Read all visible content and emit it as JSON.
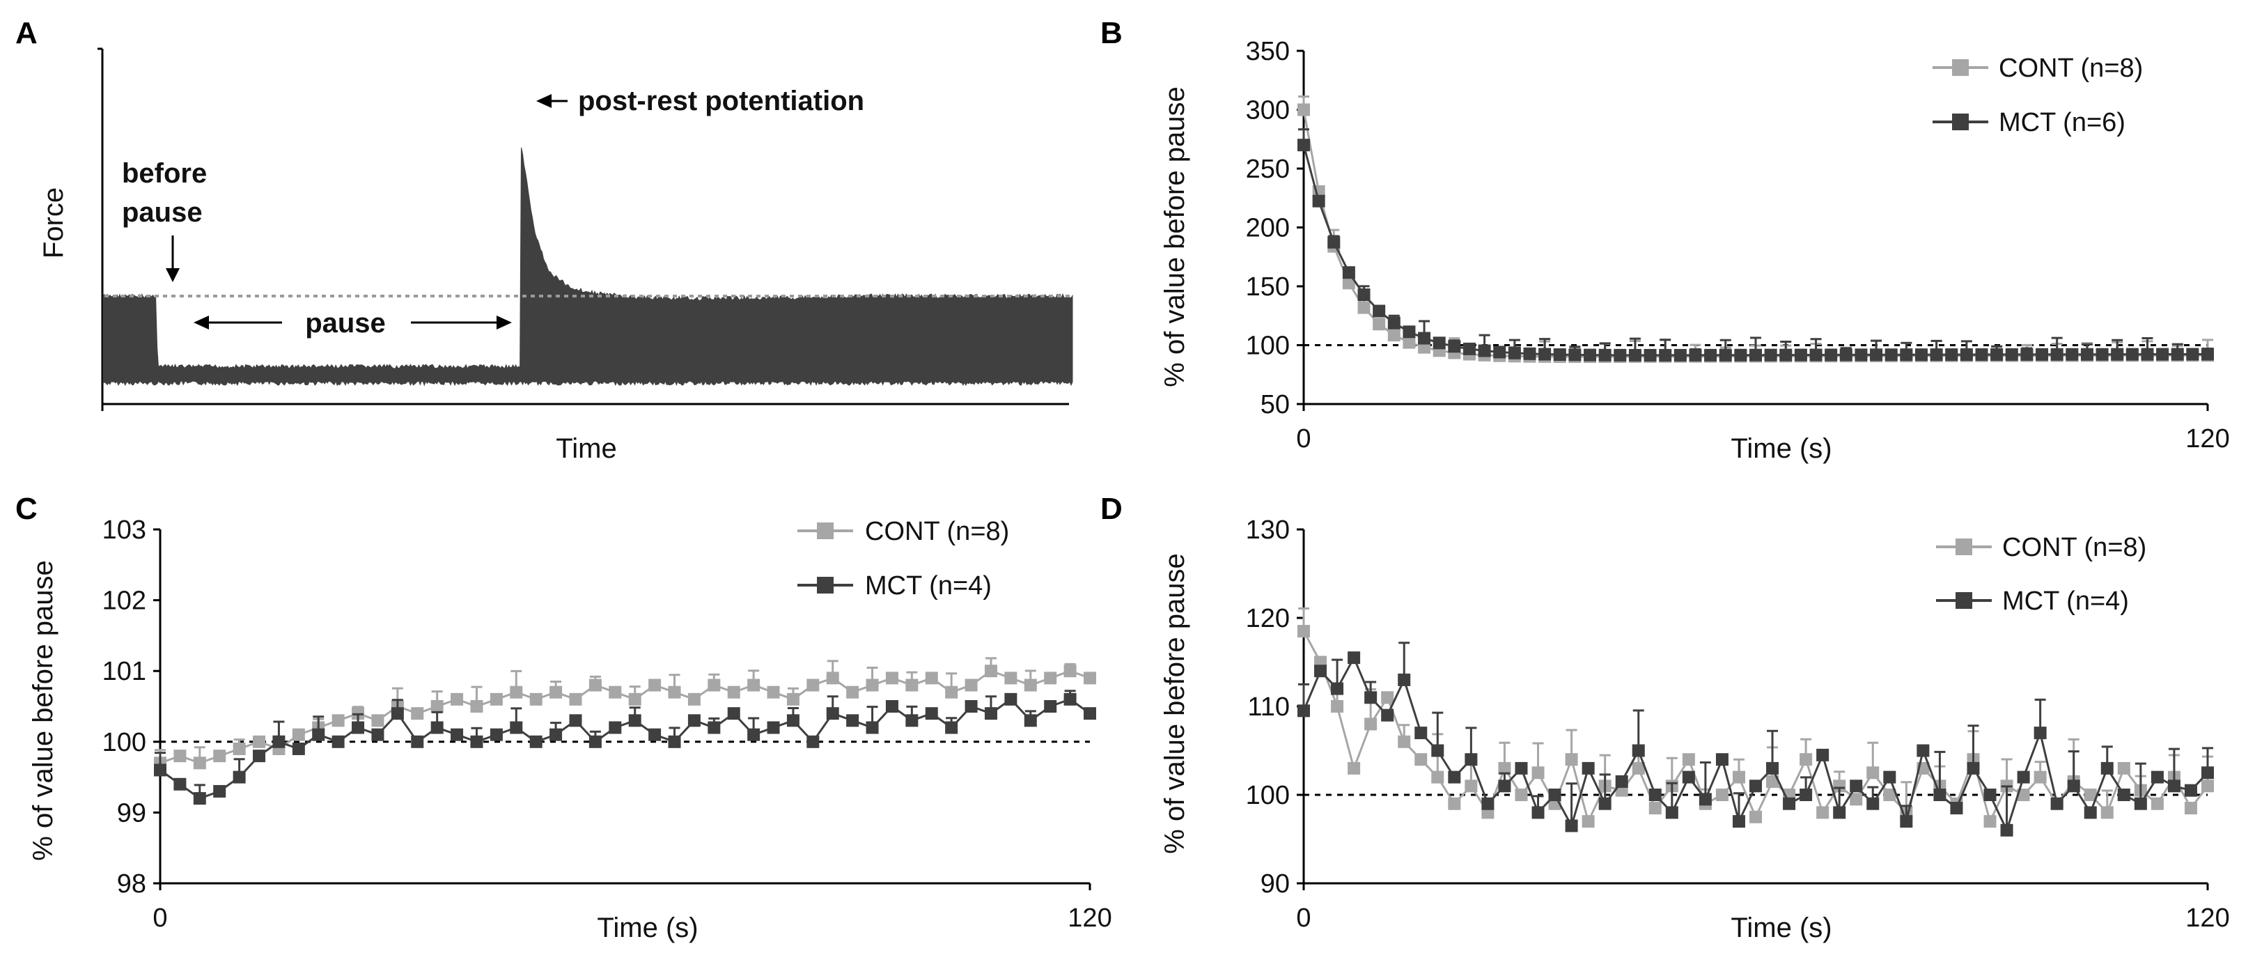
{
  "figure": {
    "panel_labels": [
      "A",
      "B",
      "C",
      "D"
    ]
  },
  "colors": {
    "cont": "#a6a6a6",
    "mct": "#3f3f3f",
    "trace": "#404040",
    "dotted_ref": "#9a9a9a"
  },
  "chart_data": [
    {
      "panel": "A",
      "type": "line",
      "title": "",
      "xlabel": "Time",
      "ylabel": "Force",
      "annotations": {
        "before_pause": "before",
        "before_pause_2": "pause",
        "pause": "pause",
        "post_rest": "post-rest potentiation"
      },
      "x": [
        0,
        0.055,
        0.056,
        0.43,
        0.431,
        0.445,
        0.46,
        0.48,
        0.5,
        0.55,
        0.6,
        0.7,
        0.8,
        0.9,
        1.0
      ],
      "upper": [
        1.0,
        1.0,
        0.12,
        0.12,
        2.9,
        1.8,
        1.3,
        1.12,
        1.05,
        0.98,
        0.97,
        0.98,
        1.0,
        1.0,
        1.0
      ],
      "lower": [
        0.0,
        0.0,
        0.0,
        0.0,
        0.0,
        0.0,
        0.0,
        0.0,
        0.0,
        0.0,
        0.0,
        0.0,
        0.0,
        0.0,
        0.0
      ],
      "reference_level": 1.0,
      "ylim": [
        -0.3,
        3.4
      ]
    },
    {
      "panel": "B",
      "type": "line",
      "xlabel": "Time (s)",
      "ylabel": "% of value before pause",
      "xlim": [
        0,
        120
      ],
      "ylim": [
        50,
        350
      ],
      "xticks": [
        "0",
        "120"
      ],
      "yticks": [
        "50",
        "100",
        "150",
        "200",
        "250",
        "300",
        "350"
      ],
      "reference": 100,
      "legend_position": "top-right",
      "series": [
        {
          "name": "CONT (n=8)",
          "decay": {
            "start": 300,
            "plateau": 89,
            "tau": 5,
            "rise_to": 92,
            "rise_tau": 80
          }
        },
        {
          "name": "MCT (n=6)",
          "decay": {
            "start": 270,
            "plateau": 90,
            "tau": 6.5,
            "rise_to": 93,
            "rise_tau": 80
          }
        }
      ]
    },
    {
      "panel": "C",
      "type": "line",
      "xlabel": "Time (s)",
      "ylabel": "% of value before pause",
      "xlim": [
        0,
        120
      ],
      "ylim": [
        98,
        103
      ],
      "xticks": [
        "0",
        "120"
      ],
      "yticks": [
        "98",
        "99",
        "100",
        "101",
        "102",
        "103"
      ],
      "reference": 100,
      "legend_position": "top-right",
      "series": [
        {
          "name": "CONT (n=8)",
          "values": [
            99.7,
            99.8,
            99.7,
            99.8,
            99.9,
            100.0,
            99.9,
            100.1,
            100.2,
            100.3,
            100.4,
            100.3,
            100.5,
            100.4,
            100.5,
            100.6,
            100.5,
            100.6,
            100.7,
            100.6,
            100.7,
            100.6,
            100.8,
            100.7,
            100.6,
            100.8,
            100.7,
            100.6,
            100.8,
            100.7,
            100.8,
            100.7,
            100.6,
            100.8,
            100.9,
            100.7,
            100.8,
            100.9,
            100.8,
            100.9,
            100.7,
            100.8,
            101.0,
            100.9,
            100.8,
            100.9,
            101.0,
            100.9
          ]
        },
        {
          "name": "MCT (n=4)",
          "values": [
            99.6,
            99.4,
            99.2,
            99.3,
            99.5,
            99.8,
            100.0,
            99.9,
            100.1,
            100.0,
            100.2,
            100.1,
            100.4,
            100.0,
            100.2,
            100.1,
            100.0,
            100.1,
            100.2,
            100.0,
            100.1,
            100.3,
            100.0,
            100.2,
            100.3,
            100.1,
            100.0,
            100.3,
            100.2,
            100.4,
            100.1,
            100.2,
            100.3,
            100.0,
            100.4,
            100.3,
            100.2,
            100.5,
            100.3,
            100.4,
            100.2,
            100.5,
            100.4,
            100.6,
            100.3,
            100.5,
            100.6,
            100.4
          ]
        }
      ]
    },
    {
      "panel": "D",
      "type": "line",
      "xlabel": "Time (s)",
      "ylabel": "% of value before pause",
      "xlim": [
        0,
        120
      ],
      "ylim": [
        90,
        130
      ],
      "xticks": [
        "0",
        "120"
      ],
      "yticks": [
        "90",
        "100",
        "110",
        "120",
        "130"
      ],
      "reference": 100,
      "legend_position": "top-right",
      "series": [
        {
          "name": "CONT (n=8)",
          "values": [
            118.5,
            115.0,
            110.0,
            103.0,
            108.0,
            111.0,
            106.0,
            104.0,
            102.0,
            99.0,
            101.0,
            98.0,
            103.0,
            100.0,
            102.5,
            99.0,
            104.0,
            97.0,
            101.0,
            100.5,
            103.0,
            98.5,
            101.0,
            104.0,
            99.0,
            100.0,
            102.0,
            97.5,
            101.5,
            100.0,
            104.0,
            98.0,
            101.0,
            99.5,
            102.5,
            100.0,
            98.0,
            103.0,
            101.0,
            99.0,
            104.0,
            97.0,
            101.0,
            100.0,
            102.0,
            99.0,
            101.5,
            100.0,
            98.0,
            103.0,
            100.5,
            99.0,
            102.0,
            98.5,
            101.0
          ]
        },
        {
          "name": "MCT (n=4)",
          "values": [
            109.5,
            114.0,
            112.0,
            115.5,
            111.0,
            109.0,
            113.0,
            107.0,
            105.0,
            102.0,
            104.0,
            99.0,
            101.0,
            103.0,
            98.0,
            100.0,
            96.5,
            103.0,
            99.0,
            101.5,
            105.0,
            100.0,
            98.0,
            102.0,
            99.5,
            104.0,
            97.0,
            101.0,
            103.0,
            99.0,
            100.0,
            104.5,
            98.0,
            101.0,
            99.0,
            102.0,
            97.0,
            105.0,
            100.0,
            98.5,
            103.0,
            100.0,
            96.0,
            102.0,
            107.0,
            99.0,
            101.0,
            98.0,
            103.0,
            100.0,
            99.0,
            102.0,
            101.0,
            100.5,
            102.5
          ]
        }
      ]
    }
  ]
}
